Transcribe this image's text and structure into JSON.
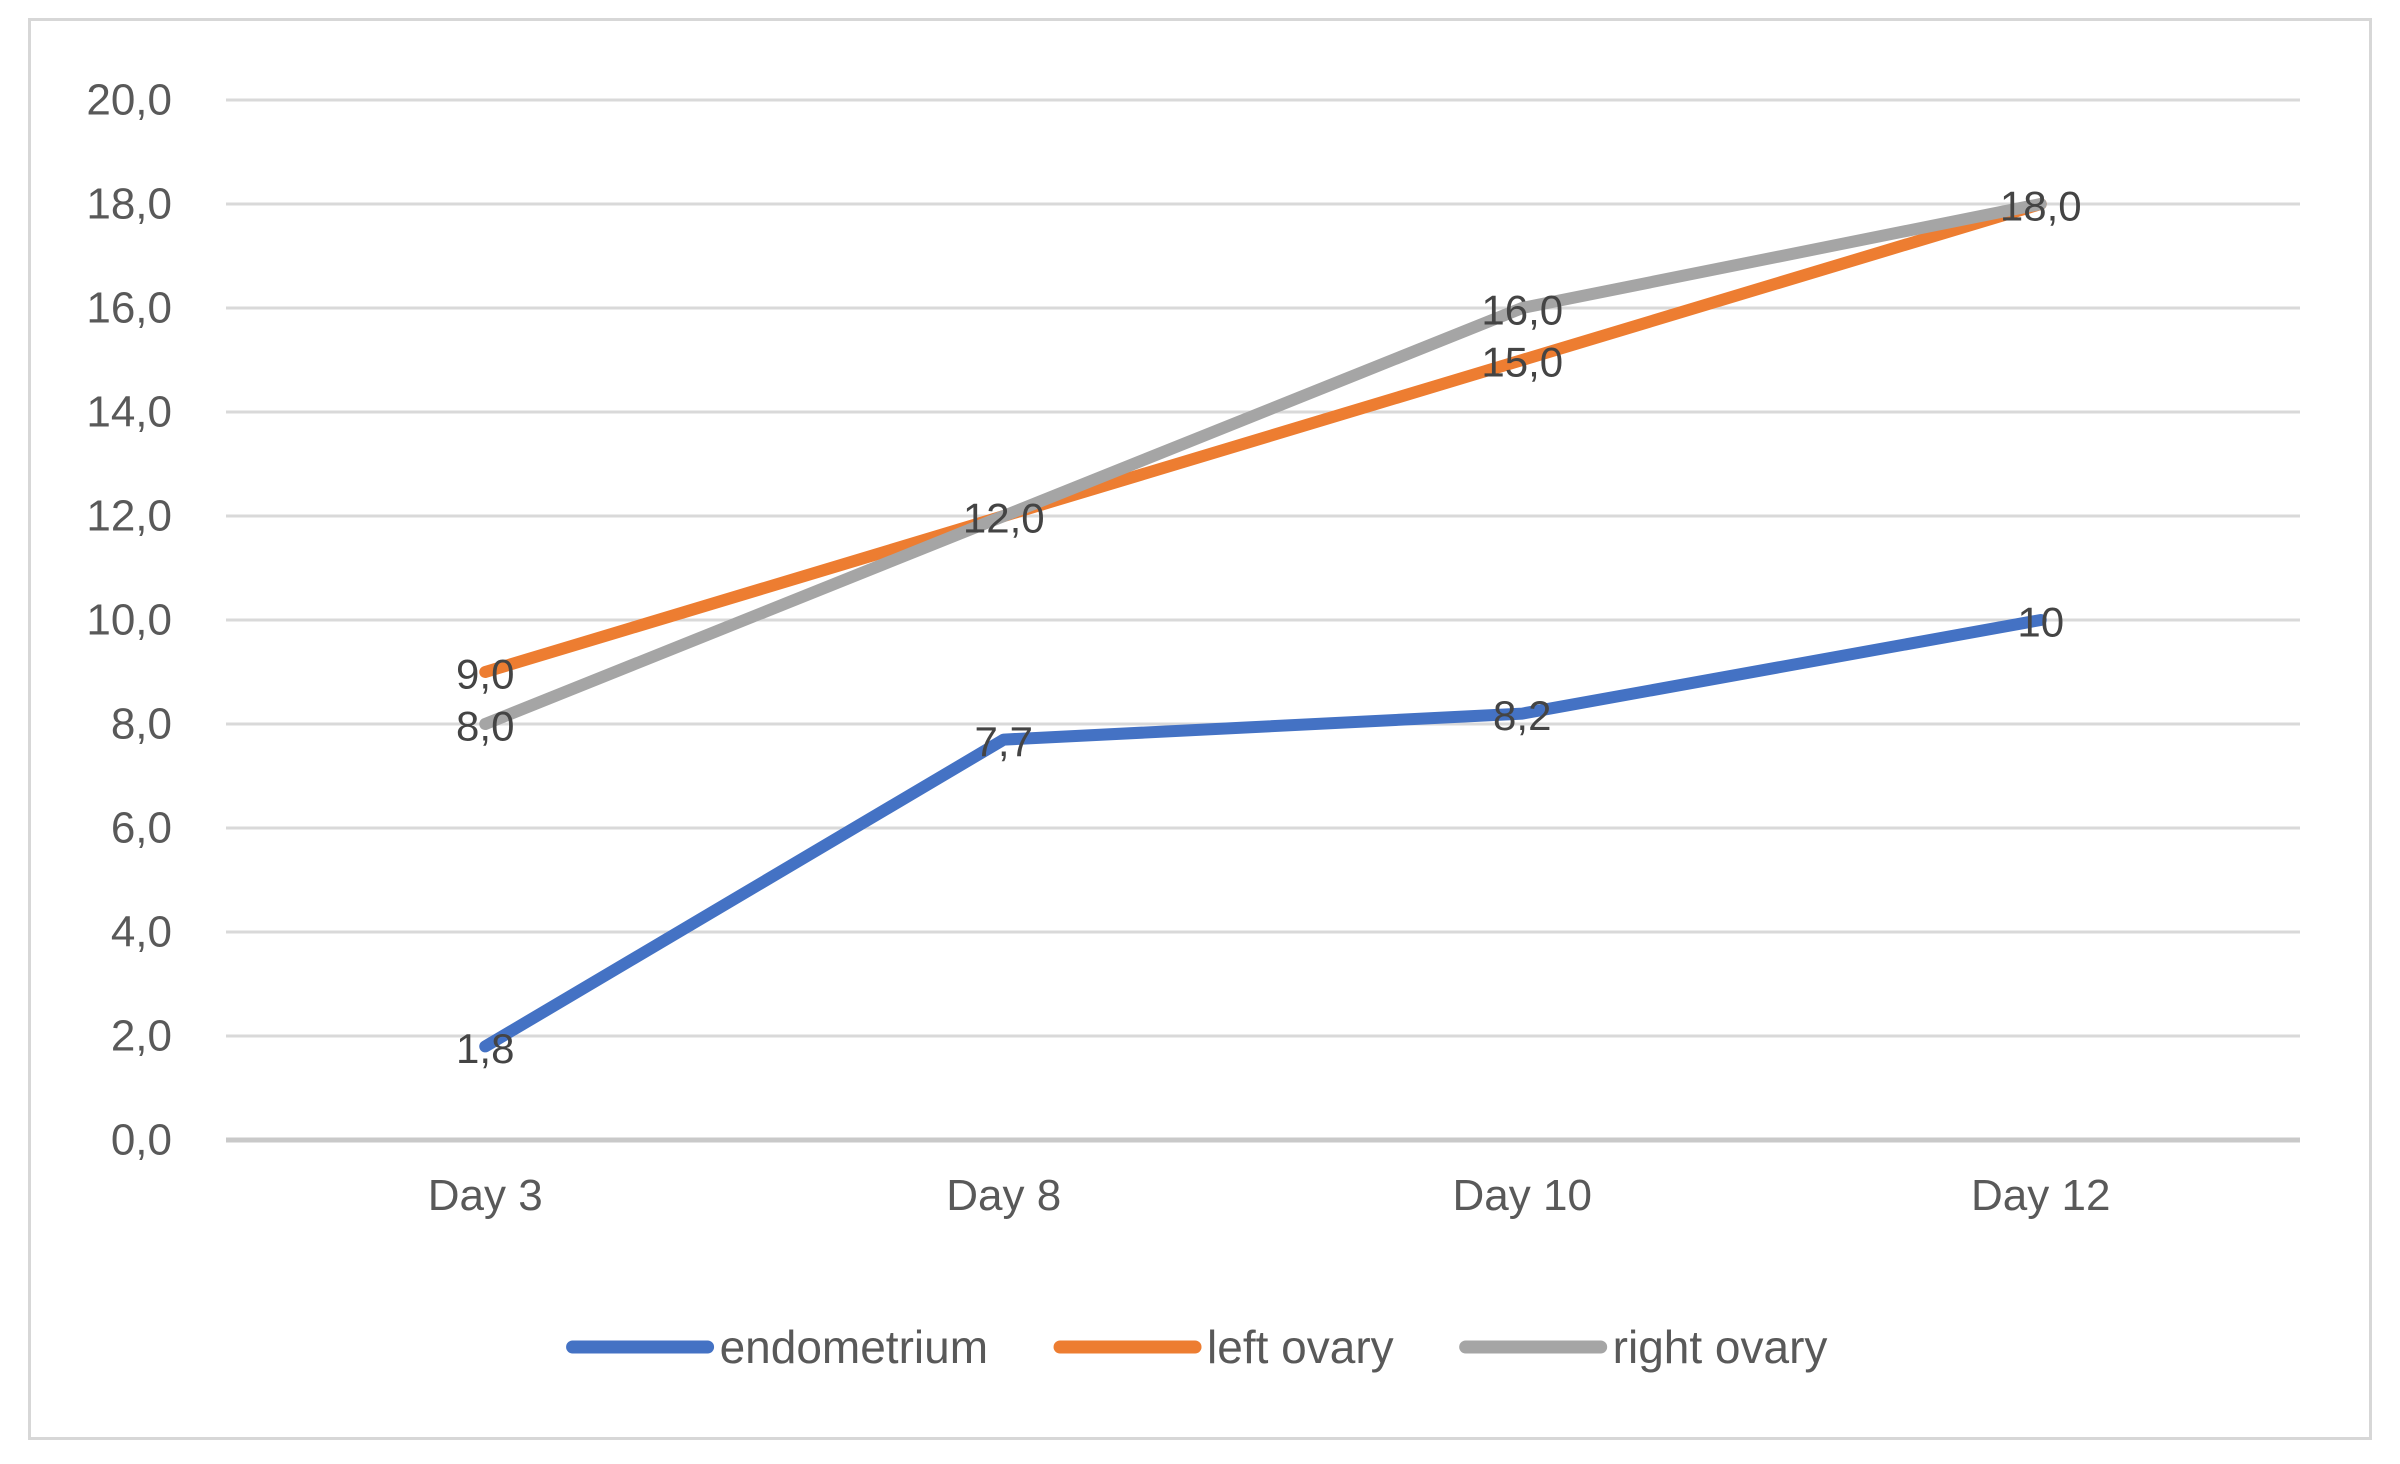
{
  "chart_data": {
    "type": "line",
    "title": "",
    "xlabel": "",
    "ylabel": "",
    "categories": [
      "Day 3",
      "Day 8",
      "Day 10",
      "Day 12"
    ],
    "series": [
      {
        "name": "endometrium",
        "color": "#4472C4",
        "values": [
          1.8,
          7.7,
          8.2,
          10.0
        ],
        "data_labels": [
          "1,8",
          "7,7",
          "8,2",
          "10"
        ]
      },
      {
        "name": "left ovary",
        "color": "#ED7D31",
        "values": [
          9.0,
          12.0,
          15.0,
          18.0
        ],
        "data_labels": [
          "9,0",
          "12,0",
          "15,0",
          "18,0"
        ]
      },
      {
        "name": "right ovary",
        "color": "#A5A5A5",
        "values": [
          8.0,
          12.0,
          16.0,
          18.0
        ],
        "data_labels": [
          "8,0",
          null,
          "16,0",
          null
        ]
      }
    ],
    "y_axis": {
      "min": 0,
      "max": 20,
      "step": 2,
      "tick_labels": [
        "0,0",
        "2,0",
        "4,0",
        "6,0",
        "8,0",
        "10,0",
        "12,0",
        "14,0",
        "16,0",
        "18,0",
        "20,0"
      ]
    },
    "decimal_separator": ",",
    "grid": true,
    "legend_position": "bottom"
  },
  "colors": {
    "gridline": "#D9D9D9",
    "axis_line": "#C9C9C9",
    "tick_text": "#595959",
    "category_text": "#595959",
    "data_label_text": "#444444",
    "legend_text": "#595959",
    "frame_border": "#D7D7D7",
    "background": "#FFFFFF"
  }
}
